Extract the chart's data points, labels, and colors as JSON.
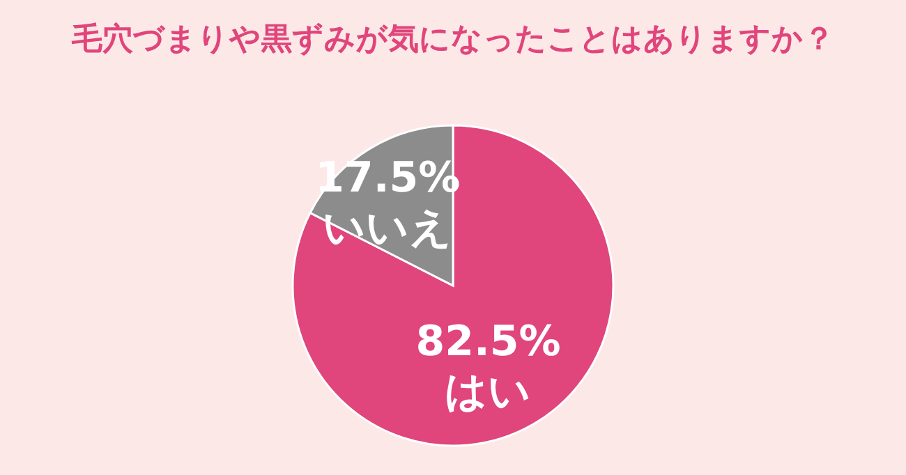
{
  "chart_data": {
    "type": "pie",
    "title": "毛穴づまりや黒ずみが気になったことはありますか？",
    "categories": [
      "はい",
      "いいえ"
    ],
    "values": [
      82.5,
      17.5
    ],
    "colors": [
      "#e0457b",
      "#8c8c8c"
    ],
    "value_labels": [
      "82.5%",
      "17.5%"
    ],
    "data_labels": true
  }
}
